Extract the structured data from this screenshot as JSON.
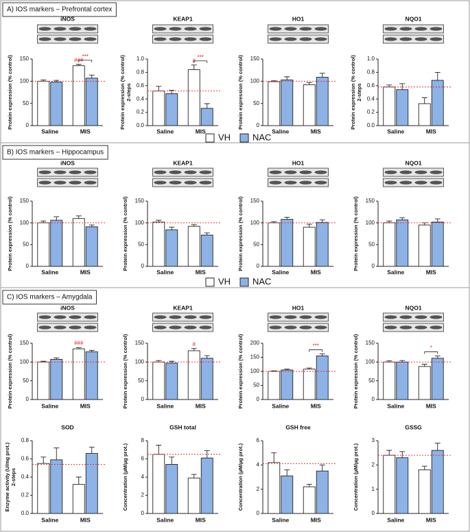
{
  "sections": [
    {
      "title": "A) IOS markers – Prefrontal cortex"
    },
    {
      "title": "B) IOS markers – Hippocampus"
    },
    {
      "title": "C) IOS markers – Amygdala"
    }
  ],
  "chart_data": [
    {
      "type": "bar",
      "title": "iNOS",
      "ylabel": "Protein expression (% control)",
      "categories": [
        "Saline",
        "MIS"
      ],
      "series": [
        {
          "name": "VH",
          "color": "#ffffff",
          "values": [
            100,
            135
          ],
          "errors": [
            3,
            3
          ]
        },
        {
          "name": "NAC",
          "color": "#8db3e6",
          "values": [
            98,
            107
          ],
          "errors": [
            4,
            7
          ]
        }
      ],
      "ylim": [
        0,
        150
      ],
      "yticks": [
        0,
        50,
        100,
        150
      ],
      "reference_line": 100,
      "reference_color": "#e8202a",
      "annotations": [
        {
          "text": "###",
          "category": "MIS",
          "series": "VH"
        },
        {
          "text": "***",
          "category": "MIS",
          "between": [
            "VH",
            "NAC"
          ]
        }
      ]
    },
    {
      "type": "bar",
      "title": "KEAP1",
      "ylabel": "Protein expression (% control)",
      "ylabel2": "2-steps",
      "categories": [
        "Saline",
        "MIS"
      ],
      "series": [
        {
          "name": "VH",
          "color": "#ffffff",
          "values": [
            0.52,
            0.84
          ],
          "errors": [
            0.07,
            0.07
          ]
        },
        {
          "name": "NAC",
          "color": "#8db3e6",
          "values": [
            0.48,
            0.26
          ],
          "errors": [
            0.05,
            0.07
          ]
        }
      ],
      "ylim": [
        0,
        1
      ],
      "yticks": [
        {
          "value": 0,
          "label": "0.0"
        },
        0.2,
        0.4,
        0.6,
        0.8,
        {
          "value": 1,
          "label": "1.0"
        }
      ],
      "reference_line": 0.52,
      "reference_color": "#e8202a",
      "annotations": [
        {
          "text": "#",
          "category": "MIS",
          "series": "VH"
        },
        {
          "text": "***",
          "category": "MIS",
          "between": [
            "VH",
            "NAC"
          ]
        }
      ]
    },
    {
      "type": "bar",
      "title": "HO1",
      "ylabel": "Protein expression (% control)",
      "categories": [
        "Saline",
        "MIS"
      ],
      "series": [
        {
          "name": "VH",
          "color": "#ffffff",
          "values": [
            99,
            92
          ],
          "errors": [
            2,
            5
          ]
        },
        {
          "name": "NAC",
          "color": "#8db3e6",
          "values": [
            103,
            109
          ],
          "errors": [
            7,
            9
          ]
        }
      ],
      "ylim": [
        0,
        150
      ],
      "yticks": [
        0,
        50,
        100,
        150
      ],
      "reference_line": 100,
      "reference_color": "#e8202a",
      "annotations": []
    },
    {
      "type": "bar",
      "title": "NQO1",
      "ylabel": "Protein expression (% control)",
      "ylabel2": "2-steps",
      "categories": [
        "Saline",
        "MIS"
      ],
      "series": [
        {
          "name": "VH",
          "color": "#ffffff",
          "values": [
            0.58,
            0.33
          ],
          "errors": [
            0.03,
            0.09
          ]
        },
        {
          "name": "NAC",
          "color": "#8db3e6",
          "values": [
            0.54,
            0.68
          ],
          "errors": [
            0.09,
            0.12
          ]
        }
      ],
      "ylim": [
        0,
        1
      ],
      "yticks": [
        {
          "value": 0,
          "label": "0.0"
        },
        0.2,
        0.4,
        0.6,
        0.8,
        {
          "value": 1,
          "label": "1.0"
        }
      ],
      "reference_line": 0.58,
      "reference_color": "#e8202a",
      "annotations": []
    },
    {
      "type": "bar",
      "title": "iNOS",
      "ylabel": "Protein expression (% control)",
      "categories": [
        "Saline",
        "MIS"
      ],
      "series": [
        {
          "name": "VH",
          "color": "#ffffff",
          "values": [
            100,
            110
          ],
          "errors": [
            4,
            6
          ]
        },
        {
          "name": "NAC",
          "color": "#8db3e6",
          "values": [
            106,
            91
          ],
          "errors": [
            8,
            4
          ]
        }
      ],
      "ylim": [
        0,
        150
      ],
      "yticks": [
        0,
        50,
        100,
        150
      ],
      "reference_line": 100,
      "reference_color": "#e8202a",
      "annotations": []
    },
    {
      "type": "bar",
      "title": "KEAP1",
      "ylabel": "Protein expression (% control)",
      "categories": [
        "Saline",
        "MIS"
      ],
      "series": [
        {
          "name": "VH",
          "color": "#ffffff",
          "values": [
            102,
            92
          ],
          "errors": [
            4,
            4
          ]
        },
        {
          "name": "NAC",
          "color": "#8db3e6",
          "values": [
            84,
            72
          ],
          "errors": [
            6,
            5
          ]
        }
      ],
      "ylim": [
        0,
        150
      ],
      "yticks": [
        0,
        50,
        100,
        150
      ],
      "reference_line": 100,
      "reference_color": "#e8202a",
      "annotations": []
    },
    {
      "type": "bar",
      "title": "HO1",
      "ylabel": "Protein expression (% control)",
      "categories": [
        "Saline",
        "MIS"
      ],
      "series": [
        {
          "name": "VH",
          "color": "#ffffff",
          "values": [
            100,
            90
          ],
          "errors": [
            3,
            7
          ]
        },
        {
          "name": "NAC",
          "color": "#8db3e6",
          "values": [
            108,
            101
          ],
          "errors": [
            5,
            6
          ]
        }
      ],
      "ylim": [
        0,
        150
      ],
      "yticks": [
        0,
        50,
        100,
        150
      ],
      "reference_line": 100,
      "reference_color": "#e8202a",
      "annotations": []
    },
    {
      "type": "bar",
      "title": "NQO1",
      "ylabel": "Protein expression (% control)",
      "categories": [
        "Saline",
        "MIS"
      ],
      "series": [
        {
          "name": "VH",
          "color": "#ffffff",
          "values": [
            100,
            95
          ],
          "errors": [
            4,
            5
          ]
        },
        {
          "name": "NAC",
          "color": "#8db3e6",
          "values": [
            107,
            102
          ],
          "errors": [
            5,
            7
          ]
        }
      ],
      "ylim": [
        0,
        150
      ],
      "yticks": [
        0,
        50,
        100,
        150
      ],
      "reference_line": 100,
      "reference_color": "#e8202a",
      "annotations": []
    },
    {
      "type": "bar",
      "title": "iNOS",
      "ylabel": "Protein expression (% control)",
      "categories": [
        "Saline",
        "MIS"
      ],
      "series": [
        {
          "name": "VH",
          "color": "#ffffff",
          "values": [
            100,
            135
          ],
          "errors": [
            2,
            3
          ]
        },
        {
          "name": "NAC",
          "color": "#8db3e6",
          "values": [
            107,
            127
          ],
          "errors": [
            4,
            4
          ]
        }
      ],
      "ylim": [
        0,
        150
      ],
      "yticks": [
        0,
        50,
        100,
        150
      ],
      "reference_line": 100,
      "reference_color": "#e8202a",
      "annotations": [
        {
          "text": "###",
          "category": "MIS",
          "series": "VH"
        }
      ]
    },
    {
      "type": "bar",
      "title": "KEAP1",
      "ylabel": "Protein expression (% control)",
      "categories": [
        "Saline",
        "MIS"
      ],
      "series": [
        {
          "name": "VH",
          "color": "#ffffff",
          "values": [
            100,
            130
          ],
          "errors": [
            4,
            6
          ]
        },
        {
          "name": "NAC",
          "color": "#8db3e6",
          "values": [
            97,
            110
          ],
          "errors": [
            5,
            7
          ]
        }
      ],
      "ylim": [
        0,
        150
      ],
      "yticks": [
        0,
        50,
        100,
        150
      ],
      "reference_line": 100,
      "reference_color": "#e8202a",
      "annotations": [
        {
          "text": "#",
          "category": "MIS",
          "series": "VH"
        }
      ]
    },
    {
      "type": "bar",
      "title": "HO1",
      "ylabel": "Protein expression (% control)",
      "categories": [
        "Saline",
        "MIS"
      ],
      "series": [
        {
          "name": "VH",
          "color": "#ffffff",
          "values": [
            100,
            108
          ],
          "errors": [
            2,
            4
          ]
        },
        {
          "name": "NAC",
          "color": "#8db3e6",
          "values": [
            105,
            155
          ],
          "errors": [
            3,
            7
          ]
        }
      ],
      "ylim": [
        0,
        200
      ],
      "yticks": [
        0,
        50,
        100,
        150,
        200
      ],
      "reference_line": 100,
      "reference_color": "#e8202a",
      "annotations": [
        {
          "text": "***",
          "category": "MIS",
          "between": [
            "VH",
            "NAC"
          ]
        }
      ]
    },
    {
      "type": "bar",
      "title": "NQO1",
      "ylabel": "Protein expression (% control)",
      "categories": [
        "Saline",
        "MIS"
      ],
      "series": [
        {
          "name": "VH",
          "color": "#ffffff",
          "values": [
            100,
            88
          ],
          "errors": [
            3,
            6
          ]
        },
        {
          "name": "NAC",
          "color": "#8db3e6",
          "values": [
            100,
            110
          ],
          "errors": [
            4,
            6
          ]
        }
      ],
      "ylim": [
        0,
        150
      ],
      "yticks": [
        0,
        50,
        100,
        150
      ],
      "reference_line": 100,
      "reference_color": "#e8202a",
      "annotations": [
        {
          "text": "*",
          "category": "MIS",
          "between": [
            "VH",
            "NAC"
          ]
        }
      ]
    },
    {
      "type": "bar",
      "title": "SOD",
      "ylabel": "Enzyme activity (U/mg prot.)",
      "ylabel2": "2-steps",
      "categories": [
        "Saline",
        "MIS"
      ],
      "series": [
        {
          "name": "VH",
          "color": "#ffffff",
          "values": [
            0.55,
            0.32
          ],
          "errors": [
            0.07,
            0.08
          ]
        },
        {
          "name": "NAC",
          "color": "#8db3e6",
          "values": [
            0.59,
            0.66
          ],
          "errors": [
            0.13,
            0.07
          ]
        }
      ],
      "ylim": [
        0,
        0.8
      ],
      "yticks": [
        {
          "value": 0,
          "label": "0.0"
        },
        0.2,
        0.4,
        0.6,
        0.8
      ],
      "reference_line": 0.54,
      "reference_color": "#e8202a",
      "annotations": []
    },
    {
      "type": "bar",
      "title": "GSH total",
      "ylabel": "Concentration (µM/µg prot.)",
      "categories": [
        "Saline",
        "MIS"
      ],
      "series": [
        {
          "name": "VH",
          "color": "#ffffff",
          "values": [
            6.5,
            3.9
          ],
          "errors": [
            1,
            0.4
          ]
        },
        {
          "name": "NAC",
          "color": "#8db3e6",
          "values": [
            5.4,
            6.1
          ],
          "errors": [
            0.8,
            0.8
          ]
        }
      ],
      "ylim": [
        0,
        8
      ],
      "yticks": [
        0,
        2,
        4,
        6,
        8
      ],
      "reference_line": 6.5,
      "reference_color": "#e8202a",
      "annotations": []
    },
    {
      "type": "bar",
      "title": "GSH free",
      "ylabel": "Concentration (µM/µg prot.)",
      "categories": [
        "Saline",
        "MIS"
      ],
      "series": [
        {
          "name": "VH",
          "color": "#ffffff",
          "values": [
            4.2,
            2.2
          ],
          "errors": [
            0.8,
            0.2
          ]
        },
        {
          "name": "NAC",
          "color": "#8db3e6",
          "values": [
            3.1,
            3.5
          ],
          "errors": [
            0.5,
            0.5
          ]
        }
      ],
      "ylim": [
        0,
        6
      ],
      "yticks": [
        0,
        2,
        4,
        6
      ],
      "reference_line": 4.1,
      "reference_color": "#e8202a",
      "annotations": []
    },
    {
      "type": "bar",
      "title": "GSSG",
      "ylabel": "Concentration (µM/µg prot.)",
      "categories": [
        "Saline",
        "MIS"
      ],
      "series": [
        {
          "name": "VH",
          "color": "#ffffff",
          "values": [
            2.4,
            1.8
          ],
          "errors": [
            0.2,
            0.15
          ]
        },
        {
          "name": "NAC",
          "color": "#8db3e6",
          "values": [
            2.3,
            2.6
          ],
          "errors": [
            0.25,
            0.3
          ]
        }
      ],
      "ylim": [
        0,
        3
      ],
      "yticks": [
        0,
        1,
        2,
        3
      ],
      "reference_line": 2.4,
      "reference_color": "#e8202a",
      "annotations": []
    }
  ]
}
